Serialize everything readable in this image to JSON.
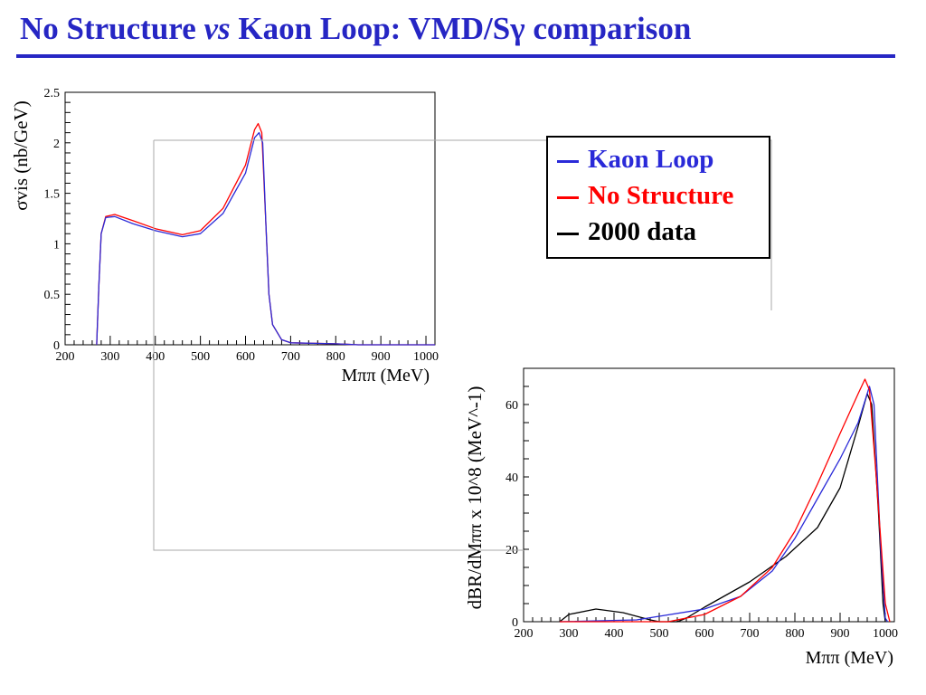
{
  "title": {
    "part1": "No Structure ",
    "vs": "vs",
    "part2": " Kaon Loop: VMD/Sγ comparison"
  },
  "legend": [
    {
      "label": "Kaon Loop",
      "color": "#2a2ad8"
    },
    {
      "label": "No Structure",
      "color": "#ff0000"
    },
    {
      "label": "2000 data",
      "color": "#000000"
    }
  ],
  "chart_data": [
    {
      "type": "line",
      "xlabel": "Mππ (MeV)",
      "ylabel": "σvis (nb/GeV)",
      "xlim": [
        200,
        1020
      ],
      "ylim": [
        0,
        2.5
      ],
      "xticks": [
        200,
        300,
        400,
        500,
        600,
        700,
        800,
        900,
        1000
      ],
      "yticks": [
        0,
        0.5,
        1,
        1.5,
        2,
        2.5
      ],
      "series": [
        {
          "name": "No Structure",
          "color": "#ff0000",
          "points": [
            [
              270,
              0
            ],
            [
              275,
              0.6
            ],
            [
              280,
              1.1
            ],
            [
              290,
              1.27
            ],
            [
              310,
              1.29
            ],
            [
              350,
              1.23
            ],
            [
              400,
              1.15
            ],
            [
              460,
              1.09
            ],
            [
              500,
              1.13
            ],
            [
              550,
              1.35
            ],
            [
              600,
              1.78
            ],
            [
              620,
              2.13
            ],
            [
              628,
              2.19
            ],
            [
              636,
              2.1
            ],
            [
              645,
              1.2
            ],
            [
              652,
              0.5
            ],
            [
              660,
              0.2
            ],
            [
              680,
              0.05
            ],
            [
              700,
              0.02
            ],
            [
              800,
              0.01
            ],
            [
              850,
              0
            ],
            [
              1020,
              0
            ]
          ]
        },
        {
          "name": "Kaon Loop",
          "color": "#2a2ad8",
          "points": [
            [
              270,
              0
            ],
            [
              275,
              0.6
            ],
            [
              280,
              1.1
            ],
            [
              290,
              1.26
            ],
            [
              310,
              1.27
            ],
            [
              350,
              1.2
            ],
            [
              400,
              1.13
            ],
            [
              460,
              1.07
            ],
            [
              500,
              1.1
            ],
            [
              550,
              1.3
            ],
            [
              600,
              1.7
            ],
            [
              620,
              2.05
            ],
            [
              630,
              2.1
            ],
            [
              638,
              2.0
            ],
            [
              645,
              1.2
            ],
            [
              652,
              0.5
            ],
            [
              660,
              0.2
            ],
            [
              680,
              0.05
            ],
            [
              700,
              0.02
            ],
            [
              800,
              0.01
            ],
            [
              850,
              0
            ],
            [
              1020,
              0
            ]
          ]
        }
      ]
    },
    {
      "type": "line",
      "xlabel": "Mππ (MeV)",
      "ylabel": "dBR/dMππ x 10^8 (MeV^-1)",
      "xlim": [
        200,
        1020
      ],
      "ylim": [
        0,
        70
      ],
      "xticks": [
        200,
        300,
        400,
        500,
        600,
        700,
        800,
        900,
        1000
      ],
      "yticks": [
        0,
        20,
        40,
        60
      ],
      "series": [
        {
          "name": "2000 data",
          "color": "#000000",
          "points": [
            [
              280,
              0
            ],
            [
              300,
              2
            ],
            [
              360,
              3.5
            ],
            [
              420,
              2.5
            ],
            [
              480,
              0.5
            ],
            [
              500,
              0
            ],
            [
              540,
              0
            ],
            [
              560,
              1
            ],
            [
              600,
              4
            ],
            [
              700,
              11
            ],
            [
              780,
              18
            ],
            [
              850,
              26
            ],
            [
              900,
              37
            ],
            [
              940,
              54
            ],
            [
              960,
              63
            ],
            [
              970,
              60
            ],
            [
              985,
              30
            ],
            [
              995,
              5
            ],
            [
              1000,
              0
            ]
          ]
        },
        {
          "name": "Kaon Loop",
          "color": "#2a2ad8",
          "points": [
            [
              280,
              0
            ],
            [
              450,
              0.5
            ],
            [
              500,
              1.5
            ],
            [
              600,
              3.5
            ],
            [
              680,
              7
            ],
            [
              750,
              14
            ],
            [
              800,
              23
            ],
            [
              850,
              34
            ],
            [
              900,
              45
            ],
            [
              940,
              55
            ],
            [
              965,
              65
            ],
            [
              975,
              60
            ],
            [
              990,
              20
            ],
            [
              1000,
              1
            ],
            [
              1005,
              0
            ]
          ]
        },
        {
          "name": "No Structure",
          "color": "#ff0000",
          "points": [
            [
              280,
              0
            ],
            [
              520,
              0
            ],
            [
              600,
              2
            ],
            [
              680,
              7
            ],
            [
              750,
              15
            ],
            [
              800,
              25
            ],
            [
              850,
              38
            ],
            [
              900,
              52
            ],
            [
              940,
              63
            ],
            [
              955,
              67
            ],
            [
              965,
              64
            ],
            [
              980,
              40
            ],
            [
              1000,
              5
            ],
            [
              1010,
              0
            ]
          ]
        }
      ]
    }
  ]
}
